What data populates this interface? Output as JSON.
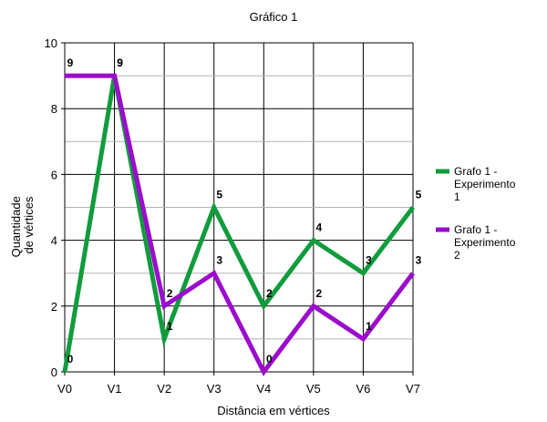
{
  "chart_data": {
    "type": "line",
    "title": "Gráfico 1",
    "xlabel": "Distância em vértices",
    "ylabel_lines": [
      "Quantidade",
      "de vértices"
    ],
    "categories": [
      "V0",
      "V1",
      "V2",
      "V3",
      "V4",
      "V5",
      "V6",
      "V7"
    ],
    "ylim": [
      0,
      10
    ],
    "yticks": [
      0,
      2,
      4,
      6,
      8,
      10
    ],
    "grid": true,
    "legend_position": "right",
    "series": [
      {
        "name": "Grafo 1 - Experimento 1",
        "legend_lines": [
          "Grafo 1 -",
          "Experimento",
          "1"
        ],
        "color": "#109c3c",
        "values": [
          0,
          9,
          1,
          5,
          2,
          4,
          3,
          5
        ]
      },
      {
        "name": "Grafo 1 - Experimento 2",
        "legend_lines": [
          "Grafo 1 -",
          "Experimento",
          "2"
        ],
        "color": "#9b0ccc",
        "values": [
          9,
          9,
          2,
          3,
          0,
          2,
          1,
          3
        ]
      }
    ]
  }
}
